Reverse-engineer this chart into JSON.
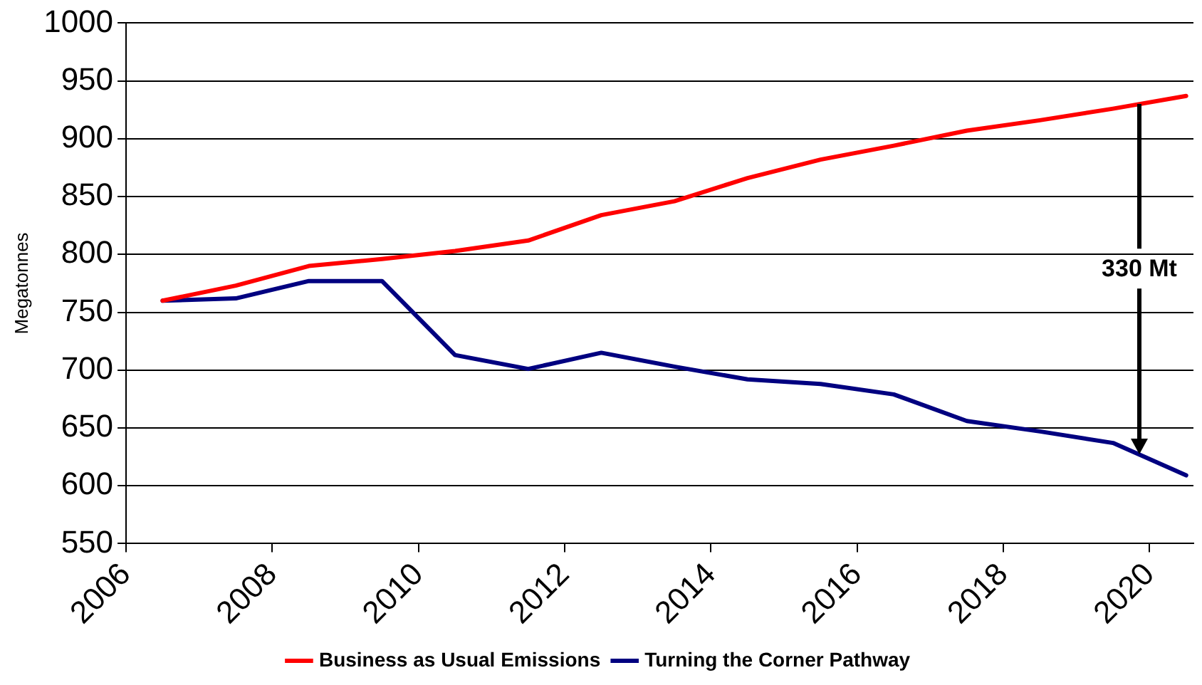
{
  "chart_data": {
    "type": "line",
    "ylabel": "Megatonnes",
    "x": [
      2006.5,
      2007.5,
      2008.5,
      2009.5,
      2010.5,
      2011.5,
      2012.5,
      2013.5,
      2014.5,
      2015.5,
      2016.5,
      2017.5,
      2018.5,
      2019.5,
      2020.5
    ],
    "series": [
      {
        "name": "Business as Usual Emissions",
        "color": "#ff0000",
        "values": [
          760,
          773,
          790,
          796,
          803,
          812,
          834,
          846,
          866,
          882,
          894,
          907,
          916,
          926,
          937
        ]
      },
      {
        "name": "Turning the Corner Pathway",
        "color": "#000080",
        "values": [
          760,
          762,
          777,
          777,
          713,
          701,
          715,
          703,
          692,
          688,
          679,
          656,
          647,
          637,
          609
        ]
      }
    ],
    "xlim": [
      2006,
      2020.6
    ],
    "xticks": [
      2006,
      2008,
      2010,
      2012,
      2014,
      2016,
      2018,
      2020
    ],
    "ylim": [
      550,
      1000
    ],
    "yticks": [
      550,
      600,
      650,
      700,
      750,
      800,
      850,
      900,
      950,
      1000
    ],
    "grid": "y",
    "legend": "bottom",
    "marker": "none",
    "line_style": "solid",
    "annotations": [
      {
        "text": "330 Mt",
        "x": 2019.85,
        "y": 930
      }
    ]
  }
}
